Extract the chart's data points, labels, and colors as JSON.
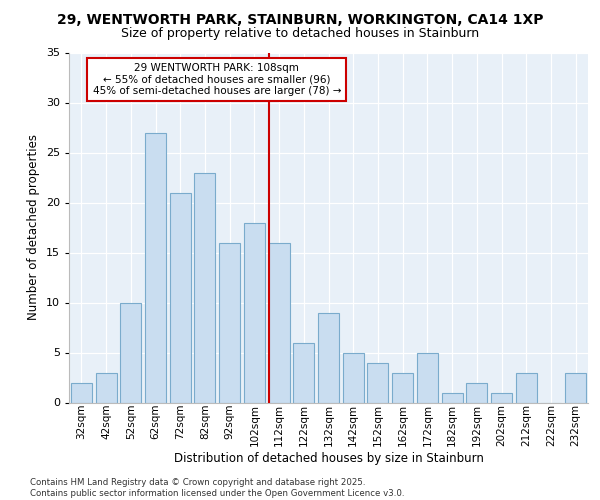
{
  "title_line1": "29, WENTWORTH PARK, STAINBURN, WORKINGTON, CA14 1XP",
  "title_line2": "Size of property relative to detached houses in Stainburn",
  "xlabel": "Distribution of detached houses by size in Stainburn",
  "ylabel": "Number of detached properties",
  "categories": [
    "32sqm",
    "42sqm",
    "52sqm",
    "62sqm",
    "72sqm",
    "82sqm",
    "92sqm",
    "102sqm",
    "112sqm",
    "122sqm",
    "132sqm",
    "142sqm",
    "152sqm",
    "162sqm",
    "172sqm",
    "182sqm",
    "192sqm",
    "202sqm",
    "212sqm",
    "222sqm",
    "232sqm"
  ],
  "values": [
    2,
    3,
    10,
    27,
    21,
    23,
    16,
    18,
    16,
    6,
    9,
    5,
    4,
    3,
    5,
    1,
    2,
    1,
    3,
    0,
    3
  ],
  "bar_color": "#c9ddf0",
  "bar_edge_color": "#7aabcc",
  "vline_x_idx": 7,
  "vline_color": "#cc0000",
  "annotation_text": "29 WENTWORTH PARK: 108sqm\n← 55% of detached houses are smaller (96)\n45% of semi-detached houses are larger (78) →",
  "annotation_box_color": "#ffffff",
  "annotation_box_edge": "#cc0000",
  "ylim": [
    0,
    35
  ],
  "yticks": [
    0,
    5,
    10,
    15,
    20,
    25,
    30,
    35
  ],
  "footer": "Contains HM Land Registry data © Crown copyright and database right 2025.\nContains public sector information licensed under the Open Government Licence v3.0.",
  "bg_color": "#e8f0f8"
}
